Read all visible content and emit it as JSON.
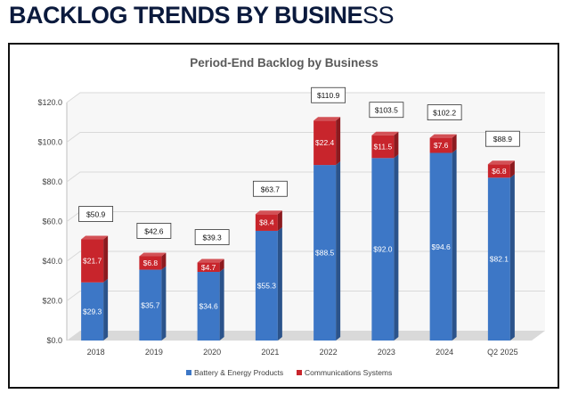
{
  "page": {
    "title_main": "BACKLOG TRENDS BY BUSINE",
    "title_tail": "SS"
  },
  "chart_data": {
    "type": "bar",
    "stacked": true,
    "title": "Period-End Backlog by Business",
    "categories": [
      "2018",
      "2019",
      "2020",
      "2021",
      "2022",
      "2023",
      "2024",
      "Q2 2025"
    ],
    "series": [
      {
        "name": "Battery & Energy Products",
        "color": "#3d77c6",
        "values": [
          29.3,
          35.7,
          34.6,
          55.3,
          88.5,
          92.0,
          94.6,
          82.1
        ],
        "labels": [
          "$29.3",
          "$35.7",
          "$34.6",
          "$55.3",
          "$88.5",
          "$92.0",
          "$94.6",
          "$82.1"
        ]
      },
      {
        "name": "Communications Systems",
        "color": "#c8252c",
        "values": [
          21.7,
          6.8,
          4.7,
          8.4,
          22.4,
          11.5,
          7.6,
          6.8
        ],
        "labels": [
          "$21.7",
          "$6.8",
          "$4.7",
          "$8.4",
          "$22.4",
          "$11.5",
          "$7.6",
          "$6.8"
        ]
      }
    ],
    "totals": [
      50.9,
      42.6,
      39.3,
      63.7,
      110.9,
      103.5,
      102.2,
      88.9
    ],
    "total_labels": [
      "$50.9",
      "$42.6",
      "$39.3",
      "$63.7",
      "$110.9",
      "$103.5",
      "$102.2",
      "$88.9"
    ],
    "ylim": [
      0,
      120
    ],
    "yticks": [
      0,
      20,
      40,
      60,
      80,
      100,
      120
    ],
    "ytick_labels": [
      "$0.0",
      "$20.0",
      "$40.0",
      "$60.0",
      "$80.0",
      "$100.0",
      "$120.0"
    ],
    "grid": true,
    "legend_position": "bottom"
  }
}
